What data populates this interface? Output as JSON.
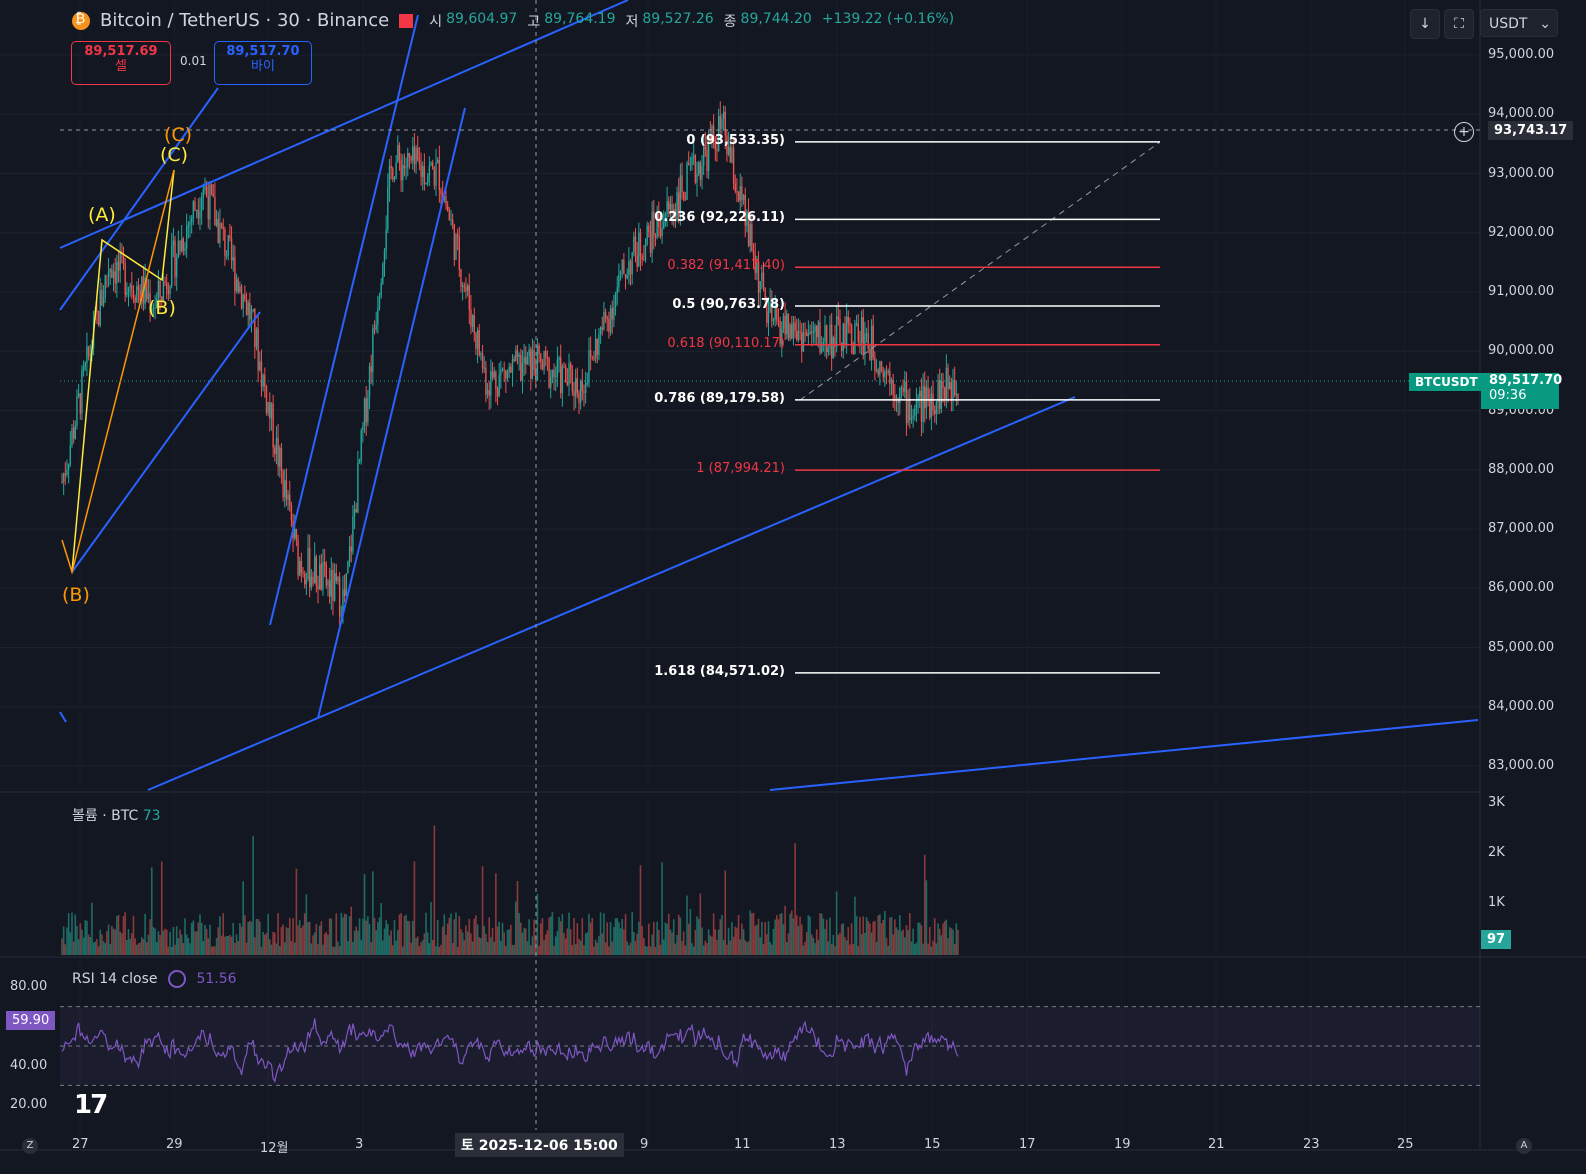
{
  "header": {
    "title": "Bitcoin / TetherUS · 30 · Binance",
    "open_label": "시",
    "open": "89,604.97",
    "high_label": "고",
    "high": "89,764.19",
    "low_label": "저",
    "low": "89,527.26",
    "close_label": "종",
    "close": "89,744.20",
    "change": "+139.22 (+0.16%)"
  },
  "trade": {
    "sell_price": "89,517.69",
    "sell_label": "셀",
    "spread": "0.01",
    "buy_price": "89,517.70",
    "buy_label": "바이"
  },
  "toolbar": {
    "currency": "USDT"
  },
  "price_axis": {
    "ticks": [
      "95,000.00",
      "94,000.00",
      "93,000.00",
      "92,000.00",
      "91,000.00",
      "90,000.00",
      "89,000.00",
      "88,000.00",
      "87,000.00",
      "86,000.00",
      "85,000.00",
      "84,000.00",
      "83,000.00"
    ],
    "crosshair_price": "93,743.17",
    "symbol_tag": "BTCUSDT",
    "last_price": "89,517.70",
    "countdown": "09:36"
  },
  "time_axis": {
    "labels": [
      "27",
      "29",
      "12월",
      "3",
      "9",
      "11",
      "13",
      "15",
      "17",
      "19",
      "21",
      "23",
      "25"
    ],
    "crosshair_time": "토 2025-12-06   15:00"
  },
  "fib_levels": [
    {
      "label": "0 (93,533.35)",
      "price": 93533.35,
      "color": "#ffffff"
    },
    {
      "label": "0.236 (92,226.11)",
      "price": 92226.11,
      "color": "#ffffff"
    },
    {
      "label": "0.382 (91,417.40)",
      "price": 91417.4,
      "color": "#f23645"
    },
    {
      "label": "0.5 (90,763.78)",
      "price": 90763.78,
      "color": "#ffffff"
    },
    {
      "label": "0.618 (90,110.17)",
      "price": 90110.17,
      "color": "#f23645"
    },
    {
      "label": "0.786 (89,179.58)",
      "price": 89179.58,
      "color": "#ffffff"
    },
    {
      "label": "1 (87,994.21)",
      "price": 87994.21,
      "color": "#f23645"
    },
    {
      "label": "1.618 (84,571.02)",
      "price": 84571.02,
      "color": "#ffffff"
    }
  ],
  "wave_labels": [
    "(C)",
    "(C)",
    "(A)",
    "(B)",
    "(B)"
  ],
  "volume_pane": {
    "title": "볼륨 · BTC",
    "value": "73",
    "ticks": [
      "3K",
      "2K",
      "1K"
    ],
    "last_tag": "97"
  },
  "rsi_pane": {
    "title": "RSI 14 close",
    "value": "51.56",
    "ticks": [
      "80.00",
      "40.00",
      "20.00"
    ],
    "last_tag": "59.90"
  },
  "colors": {
    "background": "#131722",
    "up": "#26a69a",
    "down": "#ef5350",
    "trendline": "#2962ff",
    "rsi": "#7e57c2",
    "wave_yellow": "#ffeb3b",
    "wave_orange": "#ff9800"
  },
  "chart_data": {
    "type": "candlestick",
    "instrument": "Bitcoin / TetherUS",
    "timeframe": "30",
    "exchange": "Binance",
    "ylim": [
      82800,
      95400
    ],
    "approx_close_path": {
      "x": [
        "11-26",
        "11-27",
        "11-28",
        "11-29",
        "11-30",
        "12-01",
        "12-02",
        "12-03",
        "12-04",
        "12-05",
        "12-06",
        "12-07",
        "12-08",
        "12-09",
        "12-10",
        "12-11",
        "12-12",
        "12-13",
        "12-14",
        "12-15"
      ],
      "y": [
        87800,
        91500,
        90800,
        92800,
        90600,
        86500,
        85800,
        93200,
        93000,
        89500,
        89800,
        89400,
        91500,
        92500,
        93800,
        90500,
        90200,
        90300,
        89000,
        89517.7
      ]
    },
    "rsi": {
      "period": 14,
      "last": 51.56,
      "levels": [
        70,
        30
      ]
    }
  }
}
